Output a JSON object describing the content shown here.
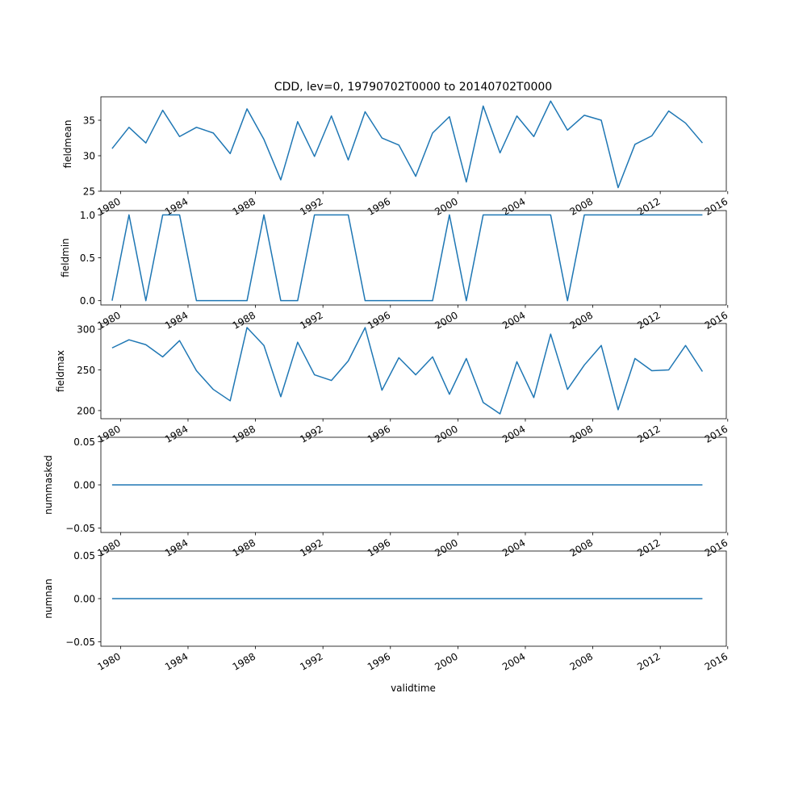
{
  "figure": {
    "title": "CDD, lev=0, 19790702T0000 to 20140702T0000",
    "xlabel": "validtime"
  },
  "chart_data": [
    {
      "type": "line",
      "ylabel": "fieldmean",
      "xlim": [
        "1978-11-01",
        "2015-12-01"
      ],
      "ylim": [
        25,
        38.3
      ],
      "yticks": [
        25,
        30,
        35
      ],
      "ytick_labels": [
        "25",
        "30",
        "35"
      ],
      "xticks": [
        "1980-01-01",
        "1984-01-01",
        "1988-01-01",
        "1992-01-01",
        "1996-01-01",
        "2000-01-01",
        "2004-01-01",
        "2008-01-01",
        "2012-01-01",
        "2016-01-01"
      ],
      "xtick_labels": [
        "1980",
        "1984",
        "1988",
        "1992",
        "1996",
        "2000",
        "2004",
        "2008",
        "2012",
        "2016"
      ],
      "line_color": "#1f77b4",
      "x": [
        "1979-07-02",
        "1980-07-02",
        "1981-07-02",
        "1982-07-02",
        "1983-07-02",
        "1984-07-02",
        "1985-07-02",
        "1986-07-02",
        "1987-07-02",
        "1988-07-02",
        "1989-07-02",
        "1990-07-02",
        "1991-07-02",
        "1992-07-02",
        "1993-07-02",
        "1994-07-02",
        "1995-07-02",
        "1996-07-02",
        "1997-07-02",
        "1998-07-02",
        "1999-07-02",
        "2000-07-02",
        "2001-07-02",
        "2002-07-02",
        "2003-07-02",
        "2004-07-02",
        "2005-07-02",
        "2006-07-02",
        "2007-07-02",
        "2008-07-02",
        "2009-07-02",
        "2010-07-02",
        "2011-07-02",
        "2012-07-02",
        "2013-07-02",
        "2014-07-02"
      ],
      "y": [
        31.0,
        34.0,
        31.8,
        36.4,
        32.7,
        34.0,
        33.2,
        30.3,
        36.6,
        32.3,
        26.6,
        34.8,
        29.9,
        35.6,
        29.4,
        36.2,
        32.5,
        31.5,
        27.1,
        33.2,
        35.5,
        26.3,
        37.0,
        30.4,
        35.6,
        32.7,
        37.7,
        33.6,
        35.7,
        35.0,
        25.5,
        31.6,
        32.8,
        36.3,
        34.6,
        31.8
      ]
    },
    {
      "type": "line",
      "ylabel": "fieldmin",
      "xlim": [
        "1978-11-01",
        "2015-12-01"
      ],
      "ylim": [
        -0.05,
        1.05
      ],
      "yticks": [
        0,
        0.5,
        1
      ],
      "ytick_labels": [
        "0.0",
        "0.5",
        "1.0"
      ],
      "xticks": [
        "1980-01-01",
        "1984-01-01",
        "1988-01-01",
        "1992-01-01",
        "1996-01-01",
        "2000-01-01",
        "2004-01-01",
        "2008-01-01",
        "2012-01-01",
        "2016-01-01"
      ],
      "xtick_labels": [
        "1980",
        "1984",
        "1988",
        "1992",
        "1996",
        "2000",
        "2004",
        "2008",
        "2012",
        "2016"
      ],
      "line_color": "#1f77b4",
      "x": [
        "1979-07-02",
        "1980-07-02",
        "1981-07-02",
        "1982-07-02",
        "1983-07-02",
        "1984-07-02",
        "1985-07-02",
        "1986-07-02",
        "1987-07-02",
        "1988-07-02",
        "1989-07-02",
        "1990-07-02",
        "1991-07-02",
        "1992-07-02",
        "1993-07-02",
        "1994-07-02",
        "1995-07-02",
        "1996-07-02",
        "1997-07-02",
        "1998-07-02",
        "1999-07-02",
        "2000-07-02",
        "2001-07-02",
        "2002-07-02",
        "2003-07-02",
        "2004-07-02",
        "2005-07-02",
        "2006-07-02",
        "2007-07-02",
        "2008-07-02",
        "2009-07-02",
        "2010-07-02",
        "2011-07-02",
        "2012-07-02",
        "2013-07-02",
        "2014-07-02"
      ],
      "y": [
        0,
        1,
        0,
        1,
        1,
        0,
        0,
        0,
        0,
        1,
        0,
        0,
        1,
        1,
        1,
        0,
        0,
        0,
        0,
        0,
        1,
        0,
        1,
        1,
        1,
        1,
        1,
        0,
        1,
        1,
        1,
        1,
        1,
        1,
        1,
        1
      ]
    },
    {
      "type": "line",
      "ylabel": "fieldmax",
      "xlim": [
        "1978-11-01",
        "2015-12-01"
      ],
      "ylim": [
        190,
        307
      ],
      "yticks": [
        200,
        250,
        300
      ],
      "ytick_labels": [
        "200",
        "250",
        "300"
      ],
      "xticks": [
        "1980-01-01",
        "1984-01-01",
        "1988-01-01",
        "1992-01-01",
        "1996-01-01",
        "2000-01-01",
        "2004-01-01",
        "2008-01-01",
        "2012-01-01",
        "2016-01-01"
      ],
      "xtick_labels": [
        "1980",
        "1984",
        "1988",
        "1992",
        "1996",
        "2000",
        "2004",
        "2008",
        "2012",
        "2016"
      ],
      "line_color": "#1f77b4",
      "x": [
        "1979-07-02",
        "1980-07-02",
        "1981-07-02",
        "1982-07-02",
        "1983-07-02",
        "1984-07-02",
        "1985-07-02",
        "1986-07-02",
        "1987-07-02",
        "1988-07-02",
        "1989-07-02",
        "1990-07-02",
        "1991-07-02",
        "1992-07-02",
        "1993-07-02",
        "1994-07-02",
        "1995-07-02",
        "1996-07-02",
        "1997-07-02",
        "1998-07-02",
        "1999-07-02",
        "2000-07-02",
        "2001-07-02",
        "2002-07-02",
        "2003-07-02",
        "2004-07-02",
        "2005-07-02",
        "2006-07-02",
        "2007-07-02",
        "2008-07-02",
        "2009-07-02",
        "2010-07-02",
        "2011-07-02",
        "2012-07-02",
        "2013-07-02",
        "2014-07-02"
      ],
      "y": [
        277,
        287,
        281,
        266,
        286,
        249,
        226,
        212,
        302,
        280,
        217,
        284,
        244,
        237,
        261,
        302,
        225,
        265,
        244,
        266,
        220,
        264,
        210,
        196,
        260,
        216,
        294,
        226,
        256,
        280,
        201,
        264,
        249,
        250,
        280,
        248
      ]
    },
    {
      "type": "line",
      "ylabel": "nummasked",
      "xlim": [
        "1978-11-01",
        "2015-12-01"
      ],
      "ylim": [
        -0.055,
        0.055
      ],
      "yticks": [
        -0.05,
        0,
        0.05
      ],
      "ytick_labels": [
        "−0.05",
        "0.00",
        "0.05"
      ],
      "xticks": [
        "1980-01-01",
        "1984-01-01",
        "1988-01-01",
        "1992-01-01",
        "1996-01-01",
        "2000-01-01",
        "2004-01-01",
        "2008-01-01",
        "2012-01-01",
        "2016-01-01"
      ],
      "xtick_labels": [
        "1980",
        "1984",
        "1988",
        "1992",
        "1996",
        "2000",
        "2004",
        "2008",
        "2012",
        "2016"
      ],
      "line_color": "#1f77b4",
      "x": [
        "1979-07-02",
        "1980-07-02",
        "1981-07-02",
        "1982-07-02",
        "1983-07-02",
        "1984-07-02",
        "1985-07-02",
        "1986-07-02",
        "1987-07-02",
        "1988-07-02",
        "1989-07-02",
        "1990-07-02",
        "1991-07-02",
        "1992-07-02",
        "1993-07-02",
        "1994-07-02",
        "1995-07-02",
        "1996-07-02",
        "1997-07-02",
        "1998-07-02",
        "1999-07-02",
        "2000-07-02",
        "2001-07-02",
        "2002-07-02",
        "2003-07-02",
        "2004-07-02",
        "2005-07-02",
        "2006-07-02",
        "2007-07-02",
        "2008-07-02",
        "2009-07-02",
        "2010-07-02",
        "2011-07-02",
        "2012-07-02",
        "2013-07-02",
        "2014-07-02"
      ],
      "y": [
        0,
        0,
        0,
        0,
        0,
        0,
        0,
        0,
        0,
        0,
        0,
        0,
        0,
        0,
        0,
        0,
        0,
        0,
        0,
        0,
        0,
        0,
        0,
        0,
        0,
        0,
        0,
        0,
        0,
        0,
        0,
        0,
        0,
        0,
        0,
        0
      ]
    },
    {
      "type": "line",
      "ylabel": "numnan",
      "xlim": [
        "1978-11-01",
        "2015-12-01"
      ],
      "ylim": [
        -0.055,
        0.055
      ],
      "yticks": [
        -0.05,
        0,
        0.05
      ],
      "ytick_labels": [
        "−0.05",
        "0.00",
        "0.05"
      ],
      "xticks": [
        "1980-01-01",
        "1984-01-01",
        "1988-01-01",
        "1992-01-01",
        "1996-01-01",
        "2000-01-01",
        "2004-01-01",
        "2008-01-01",
        "2012-01-01",
        "2016-01-01"
      ],
      "xtick_labels": [
        "1980",
        "1984",
        "1988",
        "1992",
        "1996",
        "2000",
        "2004",
        "2008",
        "2012",
        "2016"
      ],
      "line_color": "#1f77b4",
      "x": [
        "1979-07-02",
        "1980-07-02",
        "1981-07-02",
        "1982-07-02",
        "1983-07-02",
        "1984-07-02",
        "1985-07-02",
        "1986-07-02",
        "1987-07-02",
        "1988-07-02",
        "1989-07-02",
        "1990-07-02",
        "1991-07-02",
        "1992-07-02",
        "1993-07-02",
        "1994-07-02",
        "1995-07-02",
        "1996-07-02",
        "1997-07-02",
        "1998-07-02",
        "1999-07-02",
        "2000-07-02",
        "2001-07-02",
        "2002-07-02",
        "2003-07-02",
        "2004-07-02",
        "2005-07-02",
        "2006-07-02",
        "2007-07-02",
        "2008-07-02",
        "2009-07-02",
        "2010-07-02",
        "2011-07-02",
        "2012-07-02",
        "2013-07-02",
        "2014-07-02"
      ],
      "y": [
        0,
        0,
        0,
        0,
        0,
        0,
        0,
        0,
        0,
        0,
        0,
        0,
        0,
        0,
        0,
        0,
        0,
        0,
        0,
        0,
        0,
        0,
        0,
        0,
        0,
        0,
        0,
        0,
        0,
        0,
        0,
        0,
        0,
        0,
        0,
        0
      ]
    }
  ]
}
